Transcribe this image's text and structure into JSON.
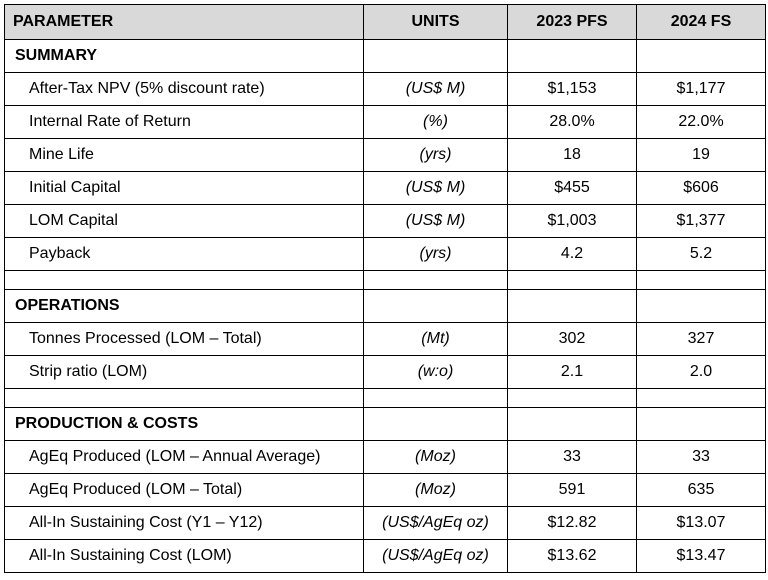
{
  "header": {
    "parameter": "PARAMETER",
    "units": "UNITS",
    "col_2023": "2023 PFS",
    "col_2024": "2024 FS"
  },
  "sections": {
    "summary": {
      "title": "SUMMARY",
      "rows": [
        {
          "param": "After-Tax NPV (5% discount rate)",
          "unit": "(US$ M)",
          "pfs2023": "$1,153",
          "fs2024": "$1,177"
        },
        {
          "param": "Internal Rate of Return",
          "unit": "(%)",
          "pfs2023": "28.0%",
          "fs2024": "22.0%"
        },
        {
          "param": "Mine Life",
          "unit": "(yrs)",
          "pfs2023": "18",
          "fs2024": "19"
        },
        {
          "param": "Initial Capital",
          "unit": "(US$ M)",
          "pfs2023": "$455",
          "fs2024": "$606"
        },
        {
          "param": "LOM Capital",
          "unit": "(US$ M)",
          "pfs2023": "$1,003",
          "fs2024": "$1,377"
        },
        {
          "param": "Payback",
          "unit": "(yrs)",
          "pfs2023": "4.2",
          "fs2024": "5.2"
        }
      ]
    },
    "operations": {
      "title": "OPERATIONS",
      "rows": [
        {
          "param": "Tonnes Processed (LOM – Total)",
          "unit": "(Mt)",
          "pfs2023": "302",
          "fs2024": "327"
        },
        {
          "param": "Strip ratio (LOM)",
          "unit": "(w:o)",
          "pfs2023": "2.1",
          "fs2024": "2.0"
        }
      ]
    },
    "production": {
      "title": "PRODUCTION & COSTS",
      "rows": [
        {
          "param": "AgEq Produced (LOM – Annual Average)",
          "unit": "(Moz)",
          "pfs2023": "33",
          "fs2024": "33"
        },
        {
          "param": "AgEq Produced (LOM – Total)",
          "unit": "(Moz)",
          "pfs2023": "591",
          "fs2024": "635"
        },
        {
          "param": "All-In Sustaining Cost (Y1 – Y12)",
          "unit": "(US$/AgEq oz)",
          "pfs2023": "$12.82",
          "fs2024": "$13.07"
        },
        {
          "param": "All-In Sustaining Cost (LOM)",
          "unit": "(US$/AgEq oz)",
          "pfs2023": "$13.62",
          "fs2024": "$13.47"
        }
      ]
    }
  }
}
